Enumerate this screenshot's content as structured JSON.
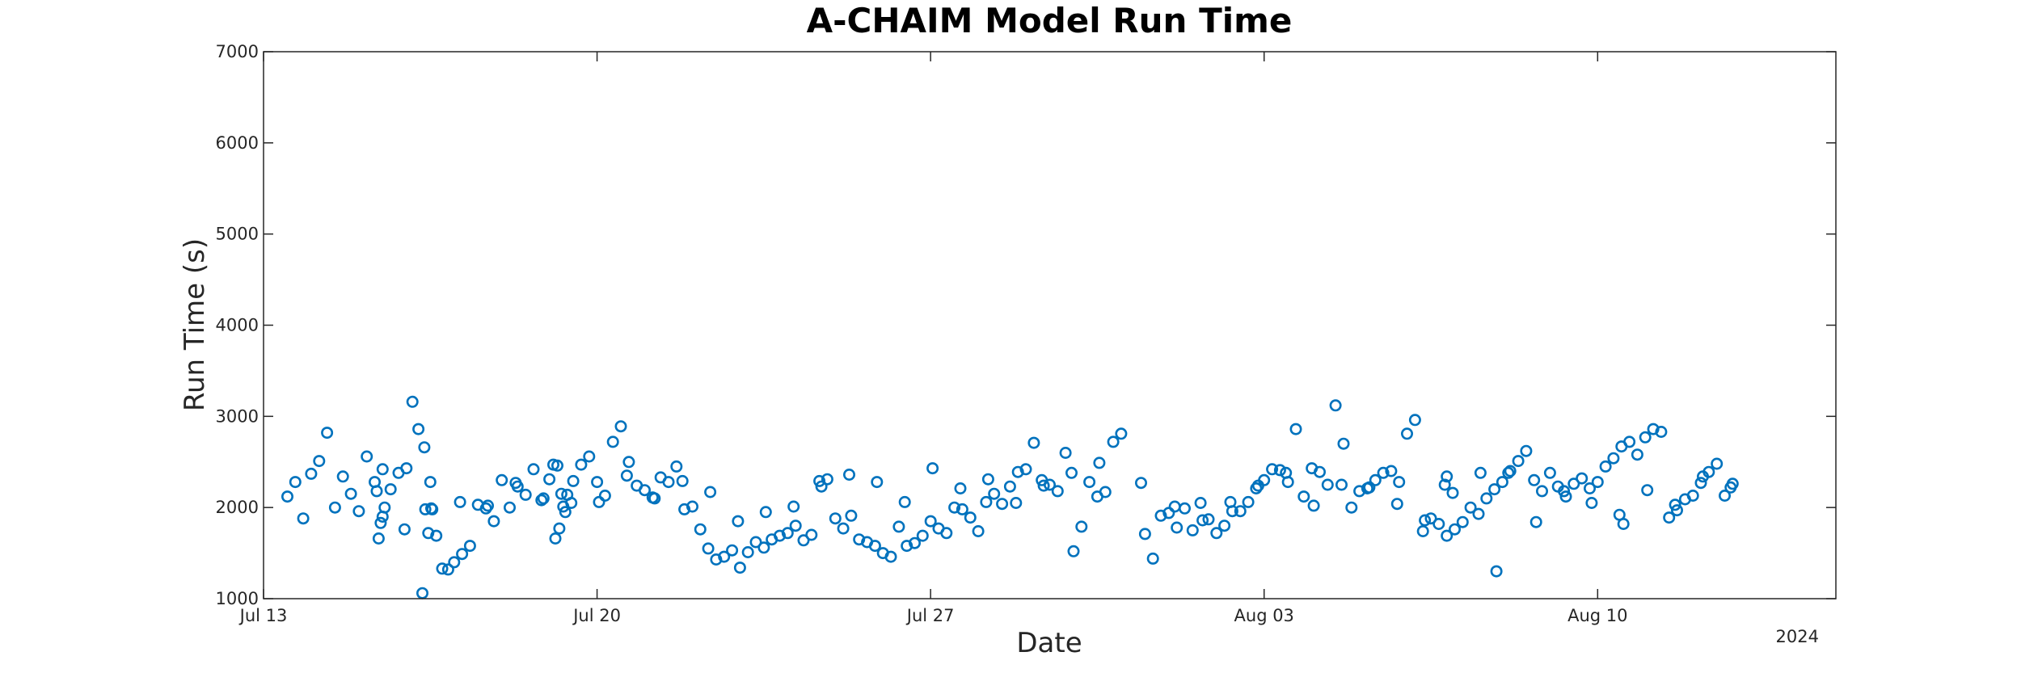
{
  "chart_data": {
    "type": "scatter",
    "title": "A-CHAIM Model Run Time",
    "xlabel": "Date",
    "ylabel": "Run Time (s)",
    "year_label": "2024",
    "xlim_days_from_jul13": [
      0,
      33
    ],
    "ylim": [
      1000,
      7000
    ],
    "y_ticks": [
      1000,
      2000,
      3000,
      4000,
      5000,
      6000,
      7000
    ],
    "x_ticks": [
      {
        "label": "Jul 13",
        "date": "2024-07-13"
      },
      {
        "label": "Jul 20",
        "date": "2024-07-20"
      },
      {
        "label": "Jul 27",
        "date": "2024-07-27"
      },
      {
        "label": "Aug 03",
        "date": "2024-08-03"
      },
      {
        "label": "Aug 10",
        "date": "2024-08-10"
      }
    ],
    "grid": false,
    "marker": "circle-open",
    "color": "#0072BD",
    "series": [
      {
        "x_dates": [
          "2024-07-13T12:00",
          "2024-07-13T16:00",
          "2024-07-13T20:00",
          "2024-07-14T00:00",
          "2024-07-14T04:00",
          "2024-07-14T08:00",
          "2024-07-14T12:00",
          "2024-07-14T16:00",
          "2024-07-14T20:00",
          "2024-07-15T00:00",
          "2024-07-15T04:00",
          "2024-07-15T08:00",
          "2024-07-15T12:00",
          "2024-07-15T16:00",
          "2024-07-15T20:00",
          "2024-07-16T00:00",
          "2024-07-16T03:00",
          "2024-07-16T06:00",
          "2024-07-16T09:00",
          "2024-07-16T12:00",
          "2024-07-16T15:00",
          "2024-07-16T18:00",
          "2024-07-16T21:00",
          "2024-07-17T00:00",
          "2024-07-17T04:00",
          "2024-07-17T08:00",
          "2024-07-17T12:00",
          "2024-07-17T16:00",
          "2024-07-17T20:00",
          "2024-07-18T00:00",
          "2024-07-18T04:00",
          "2024-07-18T08:00",
          "2024-07-18T12:00",
          "2024-07-18T16:00",
          "2024-07-18T20:00",
          "2024-07-19T00:00",
          "2024-07-19T02:00",
          "2024-07-19T04:00",
          "2024-07-19T06:00",
          "2024-07-19T08:00",
          "2024-07-19T12:00",
          "2024-07-19T16:00",
          "2024-07-19T20:00",
          "2024-07-20T00:00",
          "2024-07-20T04:00",
          "2024-07-20T08:00",
          "2024-07-20T12:00",
          "2024-07-20T16:00",
          "2024-07-20T20:00",
          "2024-07-21T00:00",
          "2024-07-21T04:00",
          "2024-07-21T08:00",
          "2024-07-21T12:00",
          "2024-07-21T16:00",
          "2024-07-21T20:00",
          "2024-07-22T00:00",
          "2024-07-22T04:00",
          "2024-07-22T08:00",
          "2024-07-22T12:00",
          "2024-07-22T16:00",
          "2024-07-22T20:00",
          "2024-07-23T00:00",
          "2024-07-23T04:00",
          "2024-07-23T08:00",
          "2024-07-23T12:00",
          "2024-07-23T16:00",
          "2024-07-23T20:00",
          "2024-07-24T00:00",
          "2024-07-24T04:00",
          "2024-07-24T08:00",
          "2024-07-24T12:00",
          "2024-07-24T16:00",
          "2024-07-24T20:00",
          "2024-07-25T00:00",
          "2024-07-25T04:00",
          "2024-07-25T08:00",
          "2024-07-25T12:00",
          "2024-07-25T16:00",
          "2024-07-25T20:00",
          "2024-07-26T00:00",
          "2024-07-26T04:00",
          "2024-07-26T08:00",
          "2024-07-26T12:00",
          "2024-07-26T16:00",
          "2024-07-26T20:00",
          "2024-07-27T00:00",
          "2024-07-27T04:00",
          "2024-07-27T08:00",
          "2024-07-27T12:00",
          "2024-07-27T16:00",
          "2024-07-27T20:00",
          "2024-07-28T00:00",
          "2024-07-28T04:00",
          "2024-07-28T08:00",
          "2024-07-28T12:00",
          "2024-07-28T16:00",
          "2024-07-28T20:00",
          "2024-07-29T00:00",
          "2024-07-29T04:00",
          "2024-07-29T08:00",
          "2024-07-29T12:00",
          "2024-07-29T16:00",
          "2024-07-29T20:00",
          "2024-07-30T00:00",
          "2024-07-30T04:00",
          "2024-07-30T08:00",
          "2024-07-30T12:00",
          "2024-07-30T16:00",
          "2024-07-30T20:00",
          "2024-07-31T00:00",
          "2024-07-31T12:00",
          "2024-07-31T16:00",
          "2024-07-31T20:00",
          "2024-08-01T00:00",
          "2024-08-01T04:00",
          "2024-08-01T08:00",
          "2024-08-01T12:00",
          "2024-08-01T16:00",
          "2024-08-01T20:00",
          "2024-08-02T00:00",
          "2024-08-02T04:00",
          "2024-08-02T08:00",
          "2024-08-02T12:00",
          "2024-08-02T16:00",
          "2024-08-02T20:00",
          "2024-08-03T00:00",
          "2024-08-03T04:00",
          "2024-08-03T08:00",
          "2024-08-03T12:00",
          "2024-08-03T16:00",
          "2024-08-03T20:00",
          "2024-08-04T00:00",
          "2024-08-04T04:00",
          "2024-08-04T08:00",
          "2024-08-04T12:00",
          "2024-08-04T16:00",
          "2024-08-04T20:00",
          "2024-08-05T00:00",
          "2024-08-05T04:00",
          "2024-08-05T08:00",
          "2024-08-05T12:00",
          "2024-08-05T16:00",
          "2024-08-05T20:00",
          "2024-08-06T00:00",
          "2024-08-06T04:00",
          "2024-08-06T08:00",
          "2024-08-06T12:00",
          "2024-08-06T16:00",
          "2024-08-06T20:00",
          "2024-08-07T00:00",
          "2024-08-07T04:00",
          "2024-08-07T08:00",
          "2024-08-07T12:00",
          "2024-08-07T16:00",
          "2024-08-07T20:00",
          "2024-08-08T00:00",
          "2024-08-08T04:00",
          "2024-08-08T08:00",
          "2024-08-08T12:00",
          "2024-08-08T16:00",
          "2024-08-08T20:00",
          "2024-08-09T00:00",
          "2024-08-09T04:00",
          "2024-08-09T08:00",
          "2024-08-09T12:00",
          "2024-08-09T16:00",
          "2024-08-09T20:00",
          "2024-08-10T00:00",
          "2024-08-10T04:00",
          "2024-08-10T08:00",
          "2024-08-10T12:00",
          "2024-08-10T16:00",
          "2024-08-10T20:00",
          "2024-08-11T00:00",
          "2024-08-11T04:00",
          "2024-08-11T08:00",
          "2024-08-11T12:00",
          "2024-08-11T16:00",
          "2024-08-11T20:00",
          "2024-08-12T00:00",
          "2024-08-12T04:00",
          "2024-08-12T08:00",
          "2024-08-12T12:00",
          "2024-08-12T16:00",
          "2024-08-12T20:00",
          "2024-07-15T09:00",
          "2024-07-15T23:00",
          "2024-07-16T13:00",
          "2024-07-17T03:00",
          "2024-07-17T17:00",
          "2024-07-18T07:00",
          "2024-07-18T21:00",
          "2024-07-19T11:00",
          "2024-07-20T01:00",
          "2024-07-20T15:00",
          "2024-07-21T05:00",
          "2024-07-21T19:00",
          "2024-07-22T09:00",
          "2024-07-22T23:00",
          "2024-07-23T13:00",
          "2024-07-24T03:00",
          "2024-07-24T17:00",
          "2024-07-25T07:00",
          "2024-07-25T21:00",
          "2024-07-26T11:00",
          "2024-07-27T01:00",
          "2024-07-27T15:00",
          "2024-07-28T05:00",
          "2024-07-28T19:00",
          "2024-07-29T09:00",
          "2024-07-29T23:00",
          "2024-07-30T13:00",
          "2024-08-01T03:00",
          "2024-08-01T17:00",
          "2024-08-02T07:00",
          "2024-08-02T21:00",
          "2024-08-03T11:00",
          "2024-08-04T01:00",
          "2024-08-04T15:00",
          "2024-08-05T05:00",
          "2024-08-05T19:00",
          "2024-08-06T09:00",
          "2024-08-06T23:00",
          "2024-08-07T13:00",
          "2024-08-08T03:00",
          "2024-08-08T17:00",
          "2024-08-09T07:00",
          "2024-08-09T21:00",
          "2024-08-10T11:00",
          "2024-08-11T01:00",
          "2024-08-11T15:00",
          "2024-08-12T05:00",
          "2024-08-12T19:00",
          "2024-07-16T08:00",
          "2024-07-16T09:30",
          "2024-07-16T11:00",
          "2024-07-16T12:30",
          "2024-07-19T03:00",
          "2024-07-19T05:00",
          "2024-07-19T07:00",
          "2024-07-19T09:00",
          "2024-07-15T10:00",
          "2024-07-15T11:00",
          "2024-07-15T12:00",
          "2024-07-15T13:00",
          "2024-07-31T10:00",
          "2024-08-06T19:00",
          "2024-08-06T20:00",
          "2024-08-07T21:00",
          "2024-08-10T13:00"
        ],
        "y": [
          2120,
          2280,
          1880,
          2370,
          2510,
          2820,
          2000,
          2340,
          2150,
          1960,
          2560,
          2280,
          2420,
          2200,
          2380,
          2430,
          3160,
          2860,
          2660,
          2280,
          1690,
          1330,
          1320,
          1400,
          1490,
          1580,
          2030,
          1990,
          1850,
          2300,
          2000,
          2230,
          2140,
          2420,
          2080,
          2310,
          2470,
          2460,
          2150,
          1950,
          2290,
          2470,
          2560,
          2280,
          2130,
          2720,
          2890,
          2500,
          2240,
          2190,
          2110,
          2330,
          2280,
          2450,
          1980,
          2010,
          1760,
          1550,
          1430,
          1460,
          1530,
          1340,
          1510,
          1620,
          1560,
          1650,
          1690,
          1720,
          1800,
          1640,
          1700,
          2290,
          2310,
          1880,
          1770,
          1910,
          1650,
          1620,
          1580,
          1500,
          1460,
          1790,
          1580,
          1610,
          1690,
          1850,
          1770,
          1720,
          2000,
          1980,
          1890,
          1740,
          2060,
          2150,
          2040,
          2230,
          2390,
          2420,
          2710,
          2300,
          2250,
          2180,
          2600,
          1520,
          1790,
          2280,
          2120,
          2170,
          2720,
          2810,
          1710,
          1440,
          1910,
          1940,
          1780,
          1990,
          1750,
          2050,
          1870,
          1720,
          1800,
          1960,
          1960,
          2060,
          2210,
          2300,
          2420,
          2410,
          2280,
          2860,
          2120,
          2430,
          2390,
          2250,
          3120,
          2700,
          2000,
          2180,
          2210,
          2300,
          2380,
          2400,
          2280,
          2810,
          2960,
          1740,
          1880,
          1820,
          1690,
          1760,
          1840,
          2000,
          1930,
          2100,
          2200,
          2280,
          2400,
          2510,
          2620,
          2300,
          2180,
          2380,
          2230,
          2120,
          2260,
          2320,
          2210,
          2280,
          2450,
          2540,
          2670,
          2720,
          2580,
          2770,
          2860,
          2830,
          1890,
          1970,
          2090,
          2130,
          2270,
          2390,
          2480,
          2130,
          2260,
          2180,
          1760,
          1980,
          2060,
          2020,
          2270,
          2100,
          2050,
          2060,
          2350,
          2100,
          2290,
          2170,
          1850,
          1950,
          2010,
          2230,
          2360,
          2280,
          2060,
          2430,
          2210,
          2310,
          2050,
          2240,
          2380,
          2490,
          2010,
          1860,
          2060,
          2240,
          2380,
          2020,
          2250,
          2220,
          2040,
          1860,
          2160,
          2380,
          2380,
          1840,
          2180,
          2050,
          1920,
          2190,
          2030,
          2340,
          2220,
          1060,
          1980,
          1720,
          1990,
          1660,
          1770,
          2010,
          2140,
          1660,
          1830,
          1900,
          2000,
          2270,
          2250,
          2340,
          1300,
          1820
        ]
      }
    ]
  }
}
